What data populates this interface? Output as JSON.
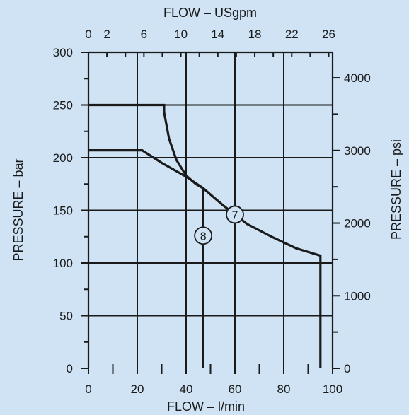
{
  "chart_data": {
    "type": "line",
    "title": "",
    "colors": {
      "background": "#cfe3f4",
      "ink": "#1a1a1a"
    },
    "grid": true,
    "axes": {
      "x_bottom": {
        "label": "FLOW  –  l/min",
        "range": [
          0,
          100
        ],
        "ticks": [
          "0",
          "20",
          "40",
          "60",
          "80",
          "100"
        ]
      },
      "x_top": {
        "label": "FLOW  –  USgpm",
        "range": [
          0,
          26.42
        ],
        "ticks": [
          "0",
          "2",
          "6",
          "10",
          "14",
          "18",
          "22",
          "26"
        ]
      },
      "y_left": {
        "label": "PRESSURE  –  bar",
        "range": [
          0,
          300
        ],
        "ticks": [
          "0",
          "50",
          "100",
          "150",
          "200",
          "250",
          "300"
        ]
      },
      "y_right": {
        "label": "PRESSURE  –  psi",
        "range": [
          0,
          4351
        ],
        "ticks": [
          "0",
          "1000",
          "2000",
          "3000",
          "4000"
        ]
      }
    },
    "series": [
      {
        "name": "7",
        "x": [
          0,
          22,
          30,
          40,
          47,
          55,
          65,
          75,
          85,
          95,
          95
        ],
        "y": [
          207,
          207,
          195,
          182,
          171,
          155,
          137,
          125,
          114,
          107,
          0
        ]
      },
      {
        "name": "8",
        "x": [
          0,
          31,
          31,
          33,
          36,
          40,
          44,
          47,
          47
        ],
        "y": [
          250,
          250,
          243,
          218,
          198,
          183,
          175,
          171,
          0
        ]
      }
    ],
    "annotations": [
      {
        "text": "7",
        "x": 60,
        "y": 146
      },
      {
        "text": "8",
        "x": 47,
        "y": 126
      }
    ]
  }
}
